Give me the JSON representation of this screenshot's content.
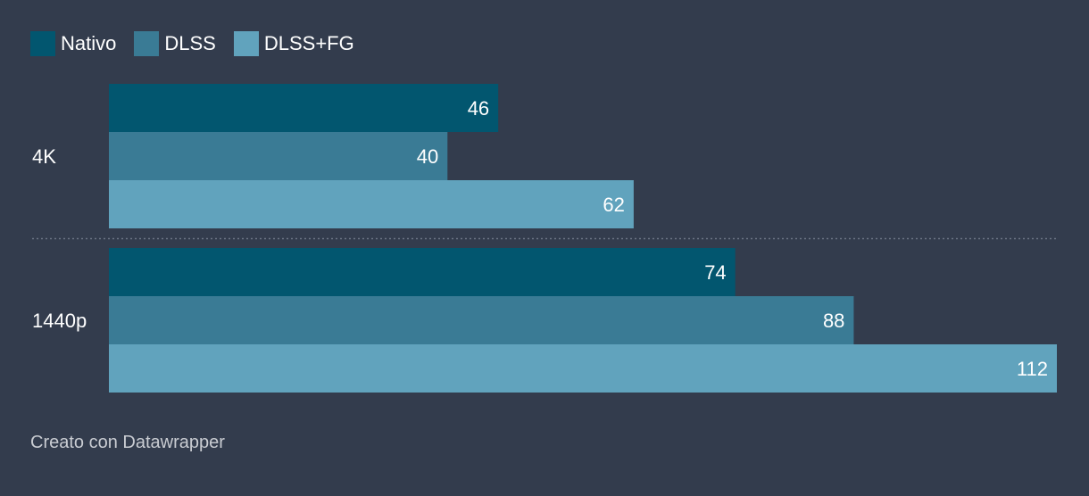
{
  "chart_data": {
    "type": "bar",
    "orientation": "horizontal",
    "categories": [
      "4K",
      "1440p"
    ],
    "series": [
      {
        "name": "Nativo",
        "color": "#02566f",
        "values": [
          46,
          74
        ]
      },
      {
        "name": "DLSS",
        "color": "#3a7b95",
        "values": [
          40,
          88
        ]
      },
      {
        "name": "DLSS+FG",
        "color": "#61a3bd",
        "values": [
          62,
          112
        ]
      }
    ],
    "xlim": [
      0,
      112
    ],
    "legend_position": "top-left",
    "value_labels": "inside-end",
    "grid": false,
    "group_separator": "dotted"
  },
  "footer": {
    "credit": "Creato con Datawrapper"
  },
  "colors": {
    "background": "#333c4d",
    "label_text": "#ffffff",
    "footer_text": "#c9ccd2",
    "separator": "#6b7384"
  }
}
